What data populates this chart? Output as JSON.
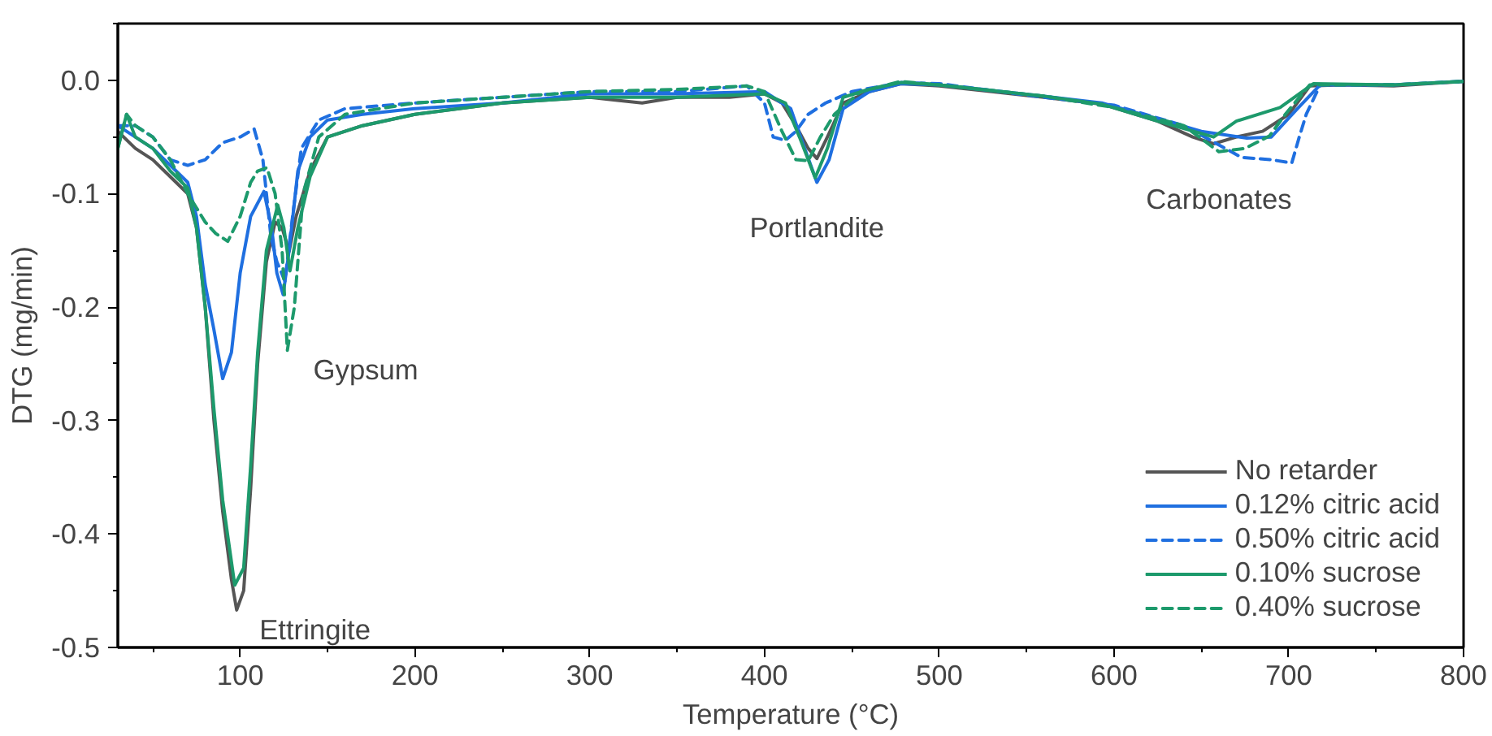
{
  "chart_data": {
    "type": "line",
    "xlabel": "Temperature (°C)",
    "ylabel": "DTG (mg/min)",
    "xlim": [
      30,
      800
    ],
    "ylim": [
      -0.5,
      0.05
    ],
    "xticks": [
      100,
      200,
      300,
      400,
      500,
      600,
      700,
      800
    ],
    "yticks": [
      {
        "value": 0,
        "label": "0.0"
      },
      {
        "value": -0.1,
        "label": "-0.1"
      },
      {
        "value": -0.2,
        "label": "-0.2"
      },
      {
        "value": -0.3,
        "label": "-0.3"
      },
      {
        "value": -0.4,
        "label": "-0.4"
      },
      {
        "value": -0.5,
        "label": "-0.5"
      }
    ],
    "grid": false,
    "legend": "bottom right",
    "marker": "none",
    "annotations": [
      {
        "text": "Ettringite",
        "x": 98,
        "y": -0.467
      },
      {
        "text": "Gypsum",
        "x": 127,
        "y": -0.238
      },
      {
        "text": "Portlandite",
        "x": 430,
        "y": -0.09
      },
      {
        "text": "Carbonates",
        "x": 660,
        "y": -0.056
      }
    ],
    "series": [
      {
        "name": "No retarder",
        "color": "#555555",
        "line_style": "solid",
        "x": [
          30,
          40,
          50,
          60,
          70,
          75,
          80,
          85,
          90,
          95,
          98,
          102,
          106,
          110,
          115,
          120,
          124,
          128,
          132,
          140,
          150,
          170,
          200,
          250,
          300,
          330,
          350,
          380,
          400,
          410,
          418,
          425,
          430,
          436,
          445,
          460,
          478,
          500,
          530,
          560,
          593,
          625,
          645,
          657,
          670,
          685,
          700,
          712,
          730,
          760,
          800
        ],
        "values": [
          -0.045,
          -0.06,
          -0.07,
          -0.085,
          -0.1,
          -0.13,
          -0.2,
          -0.3,
          -0.38,
          -0.44,
          -0.467,
          -0.45,
          -0.36,
          -0.25,
          -0.16,
          -0.125,
          -0.13,
          -0.151,
          -0.12,
          -0.08,
          -0.05,
          -0.04,
          -0.03,
          -0.02,
          -0.015,
          -0.02,
          -0.015,
          -0.015,
          -0.012,
          -0.02,
          -0.04,
          -0.06,
          -0.069,
          -0.05,
          -0.02,
          -0.01,
          -0.003,
          -0.005,
          -0.01,
          -0.015,
          -0.021,
          -0.036,
          -0.05,
          -0.056,
          -0.05,
          -0.045,
          -0.03,
          -0.005,
          -0.004,
          -0.005,
          -0.001
        ]
      },
      {
        "name": "0.12% citric acid",
        "color": "#1f6fe0",
        "line_style": "solid",
        "x": [
          30,
          40,
          50,
          60,
          70,
          75,
          80,
          85,
          90,
          95,
          100,
          106,
          113.6,
          118,
          121,
          124.6,
          128,
          133,
          140,
          150,
          170,
          200,
          250,
          300,
          350,
          400,
          415,
          423,
          430,
          437,
          445,
          460,
          478,
          500,
          560,
          593,
          625,
          650,
          676,
          690,
          705,
          718,
          760,
          800
        ],
        "values": [
          -0.04,
          -0.05,
          -0.06,
          -0.075,
          -0.09,
          -0.12,
          -0.18,
          -0.22,
          -0.263,
          -0.24,
          -0.17,
          -0.12,
          -0.098,
          -0.13,
          -0.17,
          -0.189,
          -0.15,
          -0.08,
          -0.05,
          -0.035,
          -0.03,
          -0.025,
          -0.02,
          -0.012,
          -0.012,
          -0.01,
          -0.025,
          -0.06,
          -0.09,
          -0.07,
          -0.025,
          -0.01,
          -0.003,
          -0.004,
          -0.014,
          -0.02,
          -0.034,
          -0.045,
          -0.051,
          -0.05,
          -0.025,
          -0.004,
          -0.004,
          -0.001
        ]
      },
      {
        "name": "0.50% citric acid",
        "color": "#1f6fe0",
        "line_style": "dashed",
        "x": [
          30,
          40,
          50,
          60,
          70,
          80,
          90,
          100,
          108,
          113,
          117.6,
          121,
          125.6,
          130,
          135,
          145,
          160,
          200,
          250,
          300,
          350,
          390,
          400,
          405,
          412,
          418,
          425,
          435,
          450,
          478,
          500,
          560,
          600,
          640,
          673,
          690,
          701.7,
          706,
          710,
          718,
          760,
          800
        ],
        "values": [
          -0.04,
          -0.04,
          -0.05,
          -0.07,
          -0.075,
          -0.07,
          -0.055,
          -0.05,
          -0.043,
          -0.07,
          -0.138,
          -0.16,
          -0.177,
          -0.12,
          -0.06,
          -0.035,
          -0.025,
          -0.02,
          -0.015,
          -0.01,
          -0.01,
          -0.005,
          -0.02,
          -0.05,
          -0.053,
          -0.045,
          -0.03,
          -0.02,
          -0.01,
          -0.002,
          -0.003,
          -0.015,
          -0.022,
          -0.04,
          -0.068,
          -0.07,
          -0.073,
          -0.05,
          -0.03,
          -0.004,
          -0.004,
          -0.001
        ]
      },
      {
        "name": "0.10% sucrose",
        "color": "#1d9a6c",
        "line_style": "solid",
        "x": [
          30,
          35,
          40,
          50,
          60,
          70,
          75,
          80,
          85,
          90,
          96.9,
          102,
          106,
          110,
          115,
          121.5,
          125,
          128.5,
          133,
          140,
          150,
          170,
          200,
          250,
          300,
          350,
          400,
          412,
          420,
          429,
          436,
          445,
          460,
          478,
          500,
          560,
          593,
          625,
          657,
          670,
          695,
          714,
          760,
          800
        ],
        "values": [
          -0.06,
          -0.03,
          -0.05,
          -0.06,
          -0.08,
          -0.095,
          -0.13,
          -0.2,
          -0.29,
          -0.37,
          -0.445,
          -0.43,
          -0.34,
          -0.24,
          -0.15,
          -0.11,
          -0.13,
          -0.168,
          -0.13,
          -0.085,
          -0.05,
          -0.04,
          -0.03,
          -0.02,
          -0.015,
          -0.015,
          -0.012,
          -0.02,
          -0.05,
          -0.086,
          -0.06,
          -0.015,
          -0.008,
          -0.002,
          -0.004,
          -0.014,
          -0.021,
          -0.036,
          -0.05,
          -0.036,
          -0.024,
          -0.003,
          -0.004,
          -0.001
        ]
      },
      {
        "name": "0.40% sucrose",
        "color": "#1d9a6c",
        "line_style": "dashed",
        "x": [
          30,
          35,
          40,
          50,
          60,
          70,
          80,
          86,
          92.9,
          100,
          106,
          110,
          115.3,
          120,
          124,
          127,
          131,
          136,
          145,
          160,
          200,
          250,
          300,
          350,
          390,
          400,
          410,
          418,
          425,
          432,
          440,
          455,
          478,
          500,
          560,
          600,
          640,
          660,
          675,
          689,
          698,
          712,
          760,
          800
        ],
        "values": [
          -0.06,
          -0.03,
          -0.04,
          -0.05,
          -0.07,
          -0.1,
          -0.125,
          -0.135,
          -0.142,
          -0.12,
          -0.09,
          -0.08,
          -0.077,
          -0.1,
          -0.15,
          -0.238,
          -0.2,
          -0.1,
          -0.05,
          -0.03,
          -0.02,
          -0.015,
          -0.01,
          -0.008,
          -0.005,
          -0.01,
          -0.045,
          -0.07,
          -0.071,
          -0.05,
          -0.03,
          -0.01,
          -0.001,
          -0.004,
          -0.014,
          -0.024,
          -0.04,
          -0.063,
          -0.06,
          -0.049,
          -0.03,
          -0.004,
          -0.004,
          -0.001
        ]
      }
    ]
  }
}
